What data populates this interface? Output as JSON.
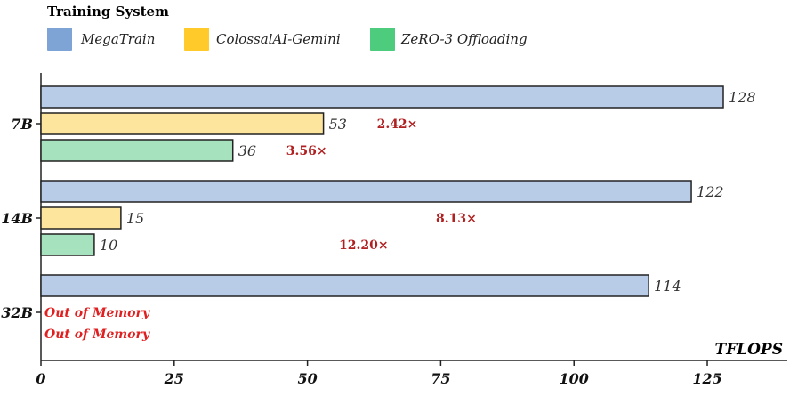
{
  "chart_data": {
    "type": "bar",
    "orientation": "horizontal",
    "legend_title": "Training System",
    "legend_position": "top-left",
    "xlabel": "TFLOPS",
    "xlim": [
      0,
      130
    ],
    "xticks": [
      0,
      25,
      50,
      75,
      100,
      125
    ],
    "categories": [
      "7B",
      "14B",
      "32B"
    ],
    "series": [
      {
        "name": "MegaTrain",
        "color": "#b8cce8",
        "legend_color": "#7ea4d6",
        "values": [
          128,
          122,
          114
        ]
      },
      {
        "name": "ColossalAI-Gemini",
        "color": "#fde59e",
        "legend_color": "#ffca2a",
        "values": [
          53,
          15,
          null
        ]
      },
      {
        "name": "ZeRO-3 Offloading",
        "color": "#a6e2be",
        "legend_color": "#4ccc7c",
        "values": [
          36,
          10,
          null
        ]
      }
    ],
    "value_labels": [
      [
        "128",
        "53",
        "36"
      ],
      [
        "122",
        "15",
        "10"
      ],
      [
        "114",
        "",
        ""
      ]
    ],
    "speedup_labels": [
      [
        "",
        "2.42×",
        "3.56×"
      ],
      [
        "",
        "8.13×",
        "12.20×"
      ],
      [
        "",
        "",
        ""
      ]
    ],
    "oom_label": "Out of Memory",
    "annotation_color": "#b02020",
    "oom_color": "#e02020"
  }
}
